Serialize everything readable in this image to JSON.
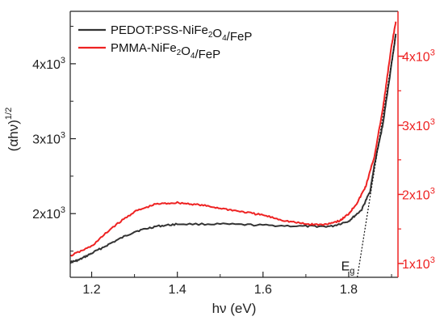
{
  "chart_data": {
    "type": "line",
    "title": "",
    "xlabel": "hν (eV)",
    "ylabel_left": "(αhν)",
    "ylabel_left_sup": "1/2",
    "xlim": [
      1.15,
      1.915
    ],
    "ylim_left": [
      1150,
      4700
    ],
    "ylim_right": [
      800,
      4650
    ],
    "x_ticks": [
      1.2,
      1.4,
      1.6,
      1.8
    ],
    "x_minor_ticks": [
      1.3,
      1.5,
      1.7,
      1.9
    ],
    "y_left_ticks": [
      {
        "value": 2000,
        "mantissa": "2x10",
        "exp": "3"
      },
      {
        "value": 3000,
        "mantissa": "3x10",
        "exp": "3"
      },
      {
        "value": 4000,
        "mantissa": "4x10",
        "exp": "3"
      }
    ],
    "y_left_minor_ticks": [
      1500,
      2500,
      3500,
      4500
    ],
    "y_right_ticks": [
      {
        "value": 1000,
        "mantissa": "1x10",
        "exp": "3"
      },
      {
        "value": 2000,
        "mantissa": "2x10",
        "exp": "3"
      },
      {
        "value": 3000,
        "mantissa": "3x10",
        "exp": "3"
      },
      {
        "value": 4000,
        "mantissa": "4x10",
        "exp": "3"
      }
    ],
    "y_right_minor_ticks": [
      1500,
      2500,
      3500
    ],
    "legend_position": "top-left",
    "colors": {
      "series1": "#333333",
      "series2": "#ee2222",
      "right_axis": "#ee2222"
    },
    "series": [
      {
        "name": "PEDOT:PSS-NiFe₂O₄/FeP",
        "color": "#333333",
        "axis": "left",
        "points": [
          [
            1.15,
            1350
          ],
          [
            1.17,
            1380
          ],
          [
            1.2,
            1470
          ],
          [
            1.25,
            1620
          ],
          [
            1.3,
            1760
          ],
          [
            1.35,
            1830
          ],
          [
            1.4,
            1860
          ],
          [
            1.5,
            1860
          ],
          [
            1.6,
            1845
          ],
          [
            1.7,
            1830
          ],
          [
            1.76,
            1830
          ],
          [
            1.8,
            1900
          ],
          [
            1.83,
            2050
          ],
          [
            1.85,
            2300
          ],
          [
            1.86,
            2650
          ],
          [
            1.88,
            3200
          ],
          [
            1.9,
            4000
          ],
          [
            1.91,
            4400
          ]
        ]
      },
      {
        "name": "PMMA-NiFe₂O₄/FeP",
        "color": "#ee2222",
        "axis": "right",
        "points": [
          [
            1.15,
            1110
          ],
          [
            1.2,
            1250
          ],
          [
            1.25,
            1530
          ],
          [
            1.3,
            1750
          ],
          [
            1.35,
            1860
          ],
          [
            1.4,
            1880
          ],
          [
            1.45,
            1850
          ],
          [
            1.5,
            1800
          ],
          [
            1.55,
            1750
          ],
          [
            1.6,
            1700
          ],
          [
            1.65,
            1620
          ],
          [
            1.7,
            1570
          ],
          [
            1.74,
            1560
          ],
          [
            1.78,
            1620
          ],
          [
            1.8,
            1720
          ],
          [
            1.82,
            1880
          ],
          [
            1.84,
            2120
          ],
          [
            1.86,
            2550
          ],
          [
            1.88,
            3250
          ],
          [
            1.9,
            4150
          ],
          [
            1.91,
            4500
          ]
        ]
      }
    ],
    "tangent": {
      "from": [
        1.82,
        800
      ],
      "to": [
        1.91,
        4300
      ],
      "axis": "right"
    },
    "annotation": {
      "label": "E",
      "sub": "g",
      "x": 1.82,
      "y": 900
    }
  }
}
